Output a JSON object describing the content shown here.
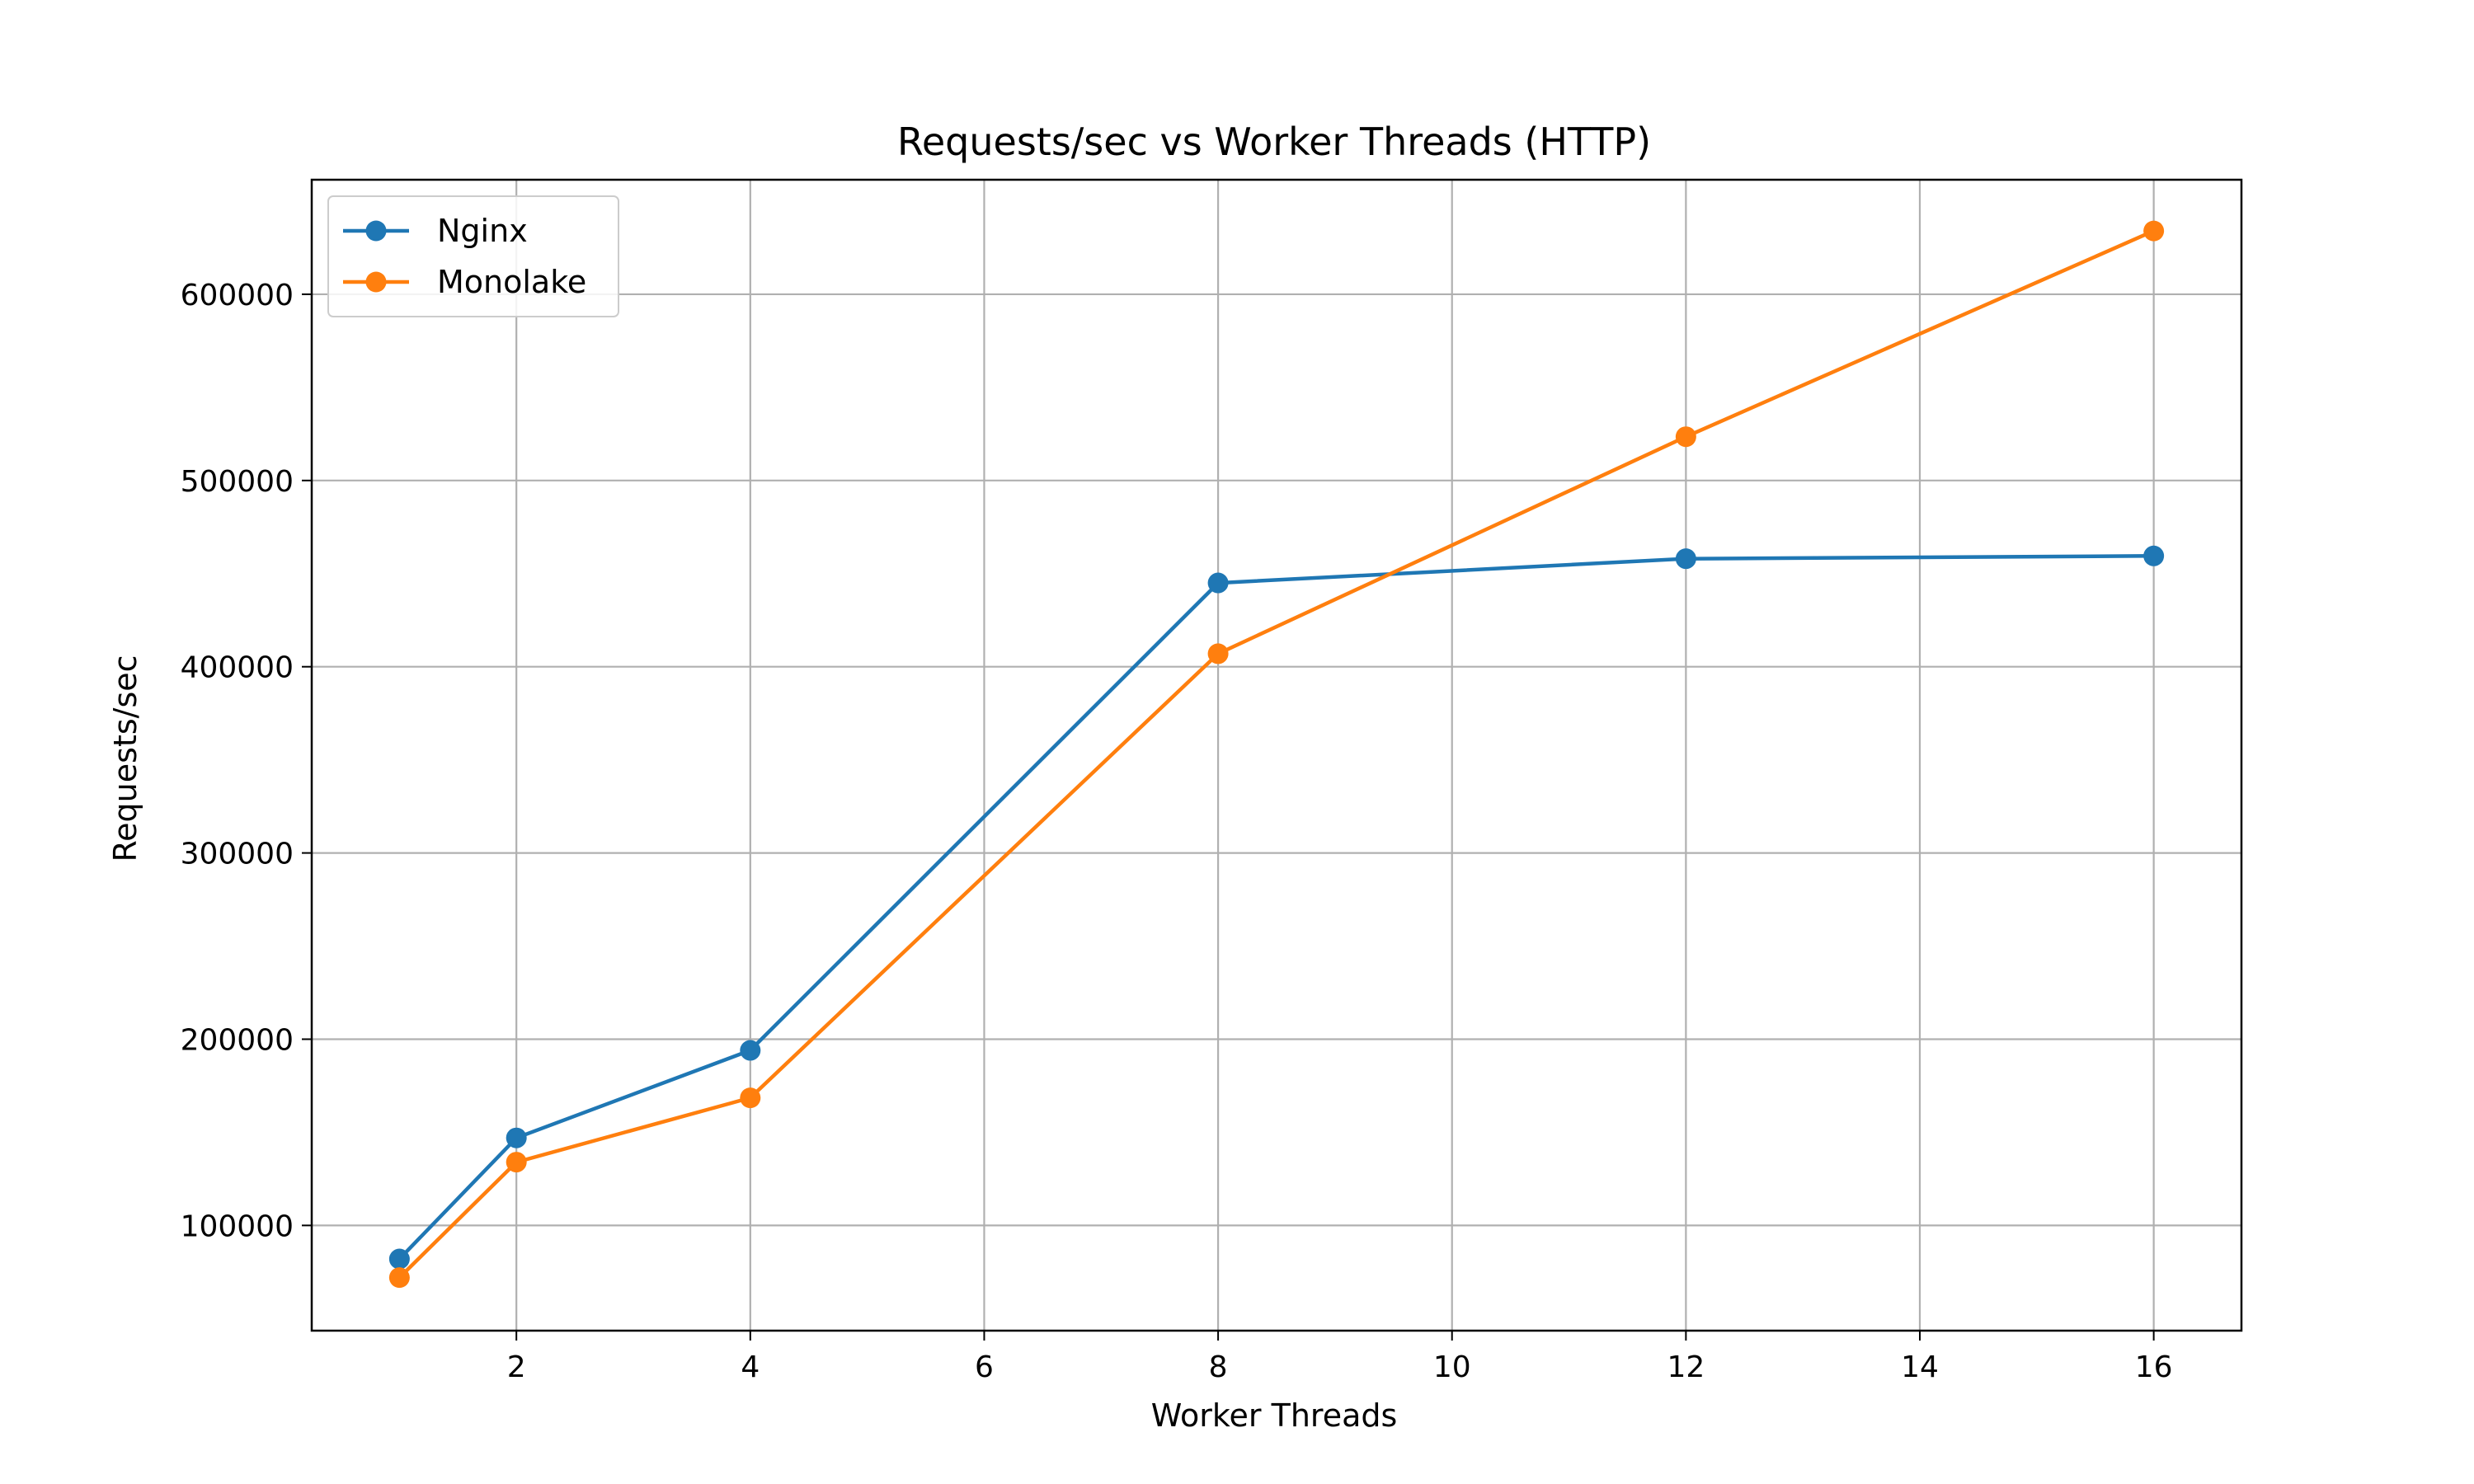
{
  "chart_data": {
    "type": "line",
    "title": "Requests/sec vs Worker Threads (HTTP)",
    "xlabel": "Worker Threads",
    "ylabel": "Requests/sec",
    "xlim": [
      0.25,
      16.75
    ],
    "ylim": [
      43500,
      661500
    ],
    "xticks": [
      2,
      4,
      6,
      8,
      10,
      12,
      14,
      16
    ],
    "yticks": [
      100000,
      200000,
      300000,
      400000,
      500000,
      600000
    ],
    "grid": true,
    "legend_position": "top-left",
    "x": [
      1,
      2,
      4,
      8,
      12,
      16
    ],
    "series": [
      {
        "name": "Nginx",
        "color": "#1f77b4",
        "marker": "circle",
        "values": [
          82000,
          147000,
          194000,
          445000,
          458000,
          459500
        ]
      },
      {
        "name": "Monolake",
        "color": "#ff7f0e",
        "marker": "circle",
        "values": [
          72000,
          134000,
          168500,
          407000,
          523500,
          634000
        ]
      }
    ]
  }
}
